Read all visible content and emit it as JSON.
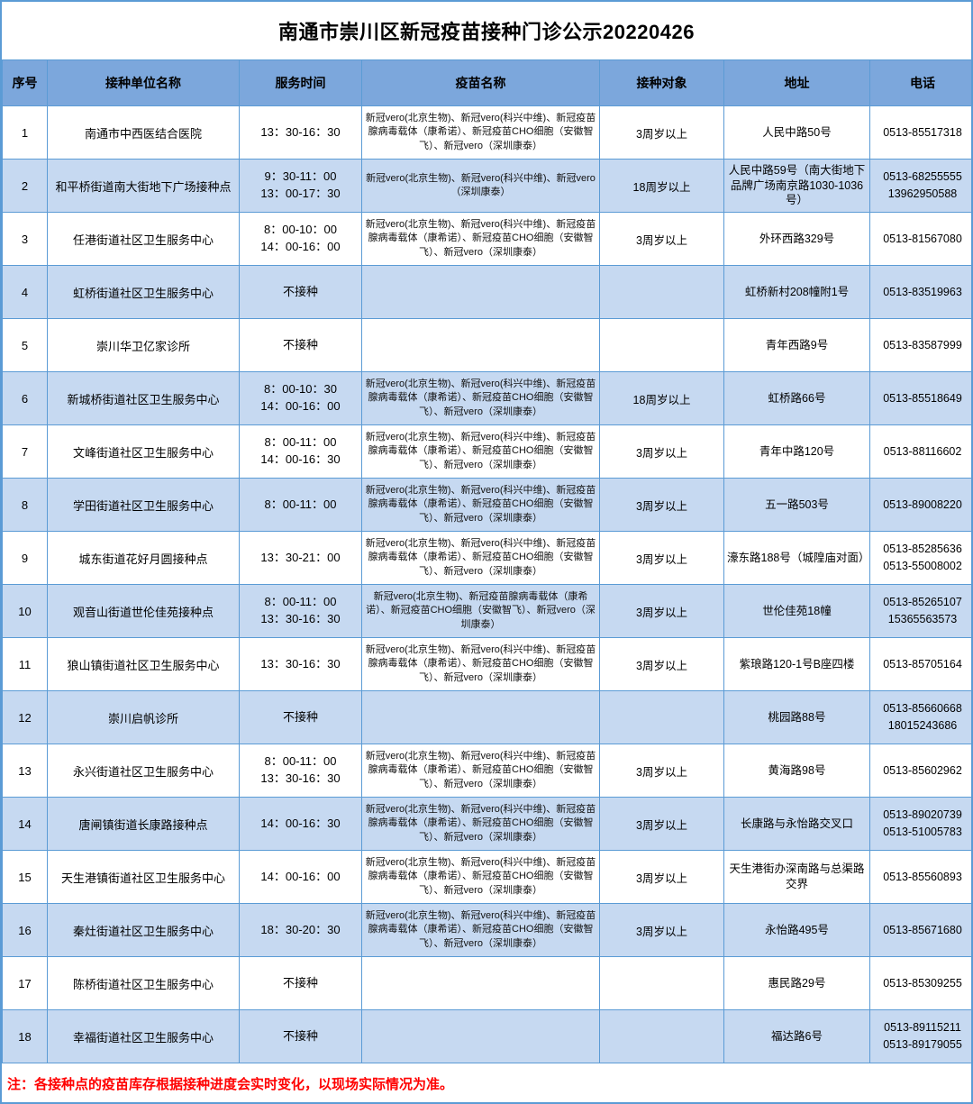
{
  "title": "南通市崇川区新冠疫苗接种门诊公示20220426",
  "note": "注：各接种点的疫苗库存根据接种进度会实时变化，以现场实际情况为准。",
  "colors": {
    "header_bg": "#7ca7dc",
    "alt_row_bg": "#c6d9f1",
    "grid_border": "#5b9bd5",
    "note_text": "#ff0000"
  },
  "columns": [
    "序号",
    "接种单位名称",
    "服务时间",
    "疫苗名称",
    "接种对象",
    "地址",
    "电话"
  ],
  "rows": [
    {
      "no": "1",
      "name": "南通市中西医结合医院",
      "time": "13：30-16：30",
      "vaccines": "新冠vero(北京生物)、新冠vero(科兴中维)、新冠疫苗腺病毒载体（康希诺）、新冠疫苗CHO细胞（安徽智飞）、新冠vero（深圳康泰）",
      "target": "3周岁以上",
      "address": "人民中路50号",
      "phone": "0513-85517318"
    },
    {
      "no": "2",
      "name": "和平桥街道南大街地下广场接种点",
      "time": "9：30-11：00\n13：00-17：30",
      "vaccines": "新冠vero(北京生物)、新冠vero(科兴中维)、新冠vero（深圳康泰）",
      "target": "18周岁以上",
      "address": "人民中路59号（南大街地下品牌广场南京路1030-1036号）",
      "phone": "0513-68255555\n13962950588"
    },
    {
      "no": "3",
      "name": "任港街道社区卫生服务中心",
      "time": "8：00-10：00\n14：00-16：00",
      "vaccines": "新冠vero(北京生物)、新冠vero(科兴中维)、新冠疫苗腺病毒载体（康希诺）、新冠疫苗CHO细胞（安徽智飞）、新冠vero（深圳康泰）",
      "target": "3周岁以上",
      "address": "外环西路329号",
      "phone": "0513-81567080"
    },
    {
      "no": "4",
      "name": "虹桥街道社区卫生服务中心",
      "time": "不接种",
      "vaccines": "",
      "target": "",
      "address": "虹桥新村208幢附1号",
      "phone": "0513-83519963"
    },
    {
      "no": "5",
      "name": "崇川华卫亿家诊所",
      "time": "不接种",
      "vaccines": "",
      "target": "",
      "address": "青年西路9号",
      "phone": "0513-83587999"
    },
    {
      "no": "6",
      "name": "新城桥街道社区卫生服务中心",
      "time": "8：00-10：30\n14：00-16：00",
      "vaccines": "新冠vero(北京生物)、新冠vero(科兴中维)、新冠疫苗腺病毒载体（康希诺）、新冠疫苗CHO细胞（安徽智飞）、新冠vero（深圳康泰）",
      "target": "18周岁以上",
      "address": "虹桥路66号",
      "phone": "0513-85518649"
    },
    {
      "no": "7",
      "name": "文峰街道社区卫生服务中心",
      "time": "8：00-11：00\n14：00-16：30",
      "vaccines": "新冠vero(北京生物)、新冠vero(科兴中维)、新冠疫苗腺病毒载体（康希诺）、新冠疫苗CHO细胞（安徽智飞）、新冠vero（深圳康泰）",
      "target": "3周岁以上",
      "address": "青年中路120号",
      "phone": "0513-88116602"
    },
    {
      "no": "8",
      "name": "学田街道社区卫生服务中心",
      "time": "8：00-11：00",
      "vaccines": "新冠vero(北京生物)、新冠vero(科兴中维)、新冠疫苗腺病毒载体（康希诺）、新冠疫苗CHO细胞（安徽智飞）、新冠vero（深圳康泰）",
      "target": "3周岁以上",
      "address": "五一路503号",
      "phone": "0513-89008220"
    },
    {
      "no": "9",
      "name": "城东街道花好月圆接种点",
      "time": "13：30-21：00",
      "vaccines": "新冠vero(北京生物)、新冠vero(科兴中维)、新冠疫苗腺病毒载体（康希诺）、新冠疫苗CHO细胞（安徽智飞）、新冠vero（深圳康泰）",
      "target": "3周岁以上",
      "address": "濠东路188号（城隍庙对面）",
      "phone": "0513-85285636\n0513-55008002"
    },
    {
      "no": "10",
      "name": "观音山街道世伦佳苑接种点",
      "time": "8：00-11：00\n13：30-16：30",
      "vaccines": "新冠vero(北京生物)、新冠疫苗腺病毒载体（康希诺）、新冠疫苗CHO细胞（安徽智飞）、新冠vero（深圳康泰）",
      "target": "3周岁以上",
      "address": "世伦佳苑18幢",
      "phone": "0513-85265107\n15365563573"
    },
    {
      "no": "11",
      "name": "狼山镇街道社区卫生服务中心",
      "time": "13：30-16：30",
      "vaccines": "新冠vero(北京生物)、新冠vero(科兴中维)、新冠疫苗腺病毒载体（康希诺）、新冠疫苗CHO细胞（安徽智飞）、新冠vero（深圳康泰）",
      "target": "3周岁以上",
      "address": "紫琅路120-1号B座四楼",
      "phone": "0513-85705164"
    },
    {
      "no": "12",
      "name": "崇川启帆诊所",
      "time": "不接种",
      "vaccines": "",
      "target": "",
      "address": "桃园路88号",
      "phone": "0513-85660668\n18015243686"
    },
    {
      "no": "13",
      "name": "永兴街道社区卫生服务中心",
      "time": "8：00-11：00\n13：30-16：30",
      "vaccines": "新冠vero(北京生物)、新冠vero(科兴中维)、新冠疫苗腺病毒载体（康希诺）、新冠疫苗CHO细胞（安徽智飞）、新冠vero（深圳康泰）",
      "target": "3周岁以上",
      "address": "黄海路98号",
      "phone": "0513-85602962"
    },
    {
      "no": "14",
      "name": "唐闸镇街道长康路接种点",
      "time": "14：00-16：30",
      "vaccines": "新冠vero(北京生物)、新冠vero(科兴中维)、新冠疫苗腺病毒载体（康希诺）、新冠疫苗CHO细胞（安徽智飞）、新冠vero（深圳康泰）",
      "target": "3周岁以上",
      "address": "长康路与永怡路交叉口",
      "phone": "0513-89020739\n0513-51005783"
    },
    {
      "no": "15",
      "name": "天生港镇街道社区卫生服务中心",
      "time": "14：00-16：00",
      "vaccines": "新冠vero(北京生物)、新冠vero(科兴中维)、新冠疫苗腺病毒载体（康希诺）、新冠疫苗CHO细胞（安徽智飞）、新冠vero（深圳康泰）",
      "target": "3周岁以上",
      "address": "天生港街办深南路与总渠路交界",
      "phone": "0513-85560893"
    },
    {
      "no": "16",
      "name": "秦灶街道社区卫生服务中心",
      "time": "18：30-20：30",
      "vaccines": "新冠vero(北京生物)、新冠vero(科兴中维)、新冠疫苗腺病毒载体（康希诺）、新冠疫苗CHO细胞（安徽智飞）、新冠vero（深圳康泰）",
      "target": "3周岁以上",
      "address": "永怡路495号",
      "phone": "0513-85671680"
    },
    {
      "no": "17",
      "name": "陈桥街道社区卫生服务中心",
      "time": "不接种",
      "vaccines": "",
      "target": "",
      "address": "惠民路29号",
      "phone": "0513-85309255"
    },
    {
      "no": "18",
      "name": "幸福街道社区卫生服务中心",
      "time": "不接种",
      "vaccines": "",
      "target": "",
      "address": "福达路6号",
      "phone": "0513-89115211\n0513-89179055"
    }
  ]
}
